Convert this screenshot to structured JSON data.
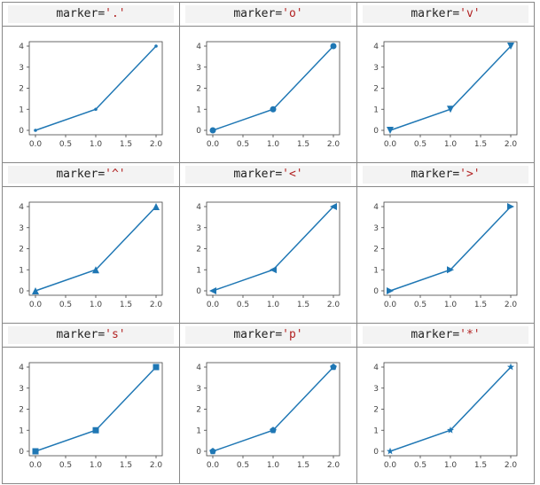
{
  "chart_data": [
    {
      "type": "line",
      "title_prefix": "marker=",
      "marker": "'.'",
      "x": [
        0,
        1,
        2
      ],
      "y": [
        0,
        1,
        4
      ],
      "xticks": [
        "0.0",
        "0.5",
        "1.0",
        "1.5",
        "2.0"
      ],
      "yticks": [
        "0",
        "1",
        "2",
        "3",
        "4"
      ],
      "xlim": [
        0,
        2
      ],
      "ylim": [
        0,
        4
      ],
      "color": "#1f77b4"
    },
    {
      "type": "line",
      "title_prefix": "marker=",
      "marker": "'o'",
      "x": [
        0,
        1,
        2
      ],
      "y": [
        0,
        1,
        4
      ],
      "xticks": [
        "0.0",
        "0.5",
        "1.0",
        "1.5",
        "2.0"
      ],
      "yticks": [
        "0",
        "1",
        "2",
        "3",
        "4"
      ],
      "xlim": [
        0,
        2
      ],
      "ylim": [
        0,
        4
      ],
      "color": "#1f77b4"
    },
    {
      "type": "line",
      "title_prefix": "marker=",
      "marker": "'v'",
      "x": [
        0,
        1,
        2
      ],
      "y": [
        0,
        1,
        4
      ],
      "xticks": [
        "0.0",
        "0.5",
        "1.0",
        "1.5",
        "2.0"
      ],
      "yticks": [
        "0",
        "1",
        "2",
        "3",
        "4"
      ],
      "xlim": [
        0,
        2
      ],
      "ylim": [
        0,
        4
      ],
      "color": "#1f77b4"
    },
    {
      "type": "line",
      "title_prefix": "marker=",
      "marker": "'^'",
      "x": [
        0,
        1,
        2
      ],
      "y": [
        0,
        1,
        4
      ],
      "xticks": [
        "0.0",
        "0.5",
        "1.0",
        "1.5",
        "2.0"
      ],
      "yticks": [
        "0",
        "1",
        "2",
        "3",
        "4"
      ],
      "xlim": [
        0,
        2
      ],
      "ylim": [
        0,
        4
      ],
      "color": "#1f77b4"
    },
    {
      "type": "line",
      "title_prefix": "marker=",
      "marker": "'<'",
      "x": [
        0,
        1,
        2
      ],
      "y": [
        0,
        1,
        4
      ],
      "xticks": [
        "0.0",
        "0.5",
        "1.0",
        "1.5",
        "2.0"
      ],
      "yticks": [
        "0",
        "1",
        "2",
        "3",
        "4"
      ],
      "xlim": [
        0,
        2
      ],
      "ylim": [
        0,
        4
      ],
      "color": "#1f77b4"
    },
    {
      "type": "line",
      "title_prefix": "marker=",
      "marker": "'>'",
      "x": [
        0,
        1,
        2
      ],
      "y": [
        0,
        1,
        4
      ],
      "xticks": [
        "0.0",
        "0.5",
        "1.0",
        "1.5",
        "2.0"
      ],
      "yticks": [
        "0",
        "1",
        "2",
        "3",
        "4"
      ],
      "xlim": [
        0,
        2
      ],
      "ylim": [
        0,
        4
      ],
      "color": "#1f77b4"
    },
    {
      "type": "line",
      "title_prefix": "marker=",
      "marker": "'s'",
      "x": [
        0,
        1,
        2
      ],
      "y": [
        0,
        1,
        4
      ],
      "xticks": [
        "0.0",
        "0.5",
        "1.0",
        "1.5",
        "2.0"
      ],
      "yticks": [
        "0",
        "1",
        "2",
        "3",
        "4"
      ],
      "xlim": [
        0,
        2
      ],
      "ylim": [
        0,
        4
      ],
      "color": "#1f77b4"
    },
    {
      "type": "line",
      "title_prefix": "marker=",
      "marker": "'p'",
      "x": [
        0,
        1,
        2
      ],
      "y": [
        0,
        1,
        4
      ],
      "xticks": [
        "0.0",
        "0.5",
        "1.0",
        "1.5",
        "2.0"
      ],
      "yticks": [
        "0",
        "1",
        "2",
        "3",
        "4"
      ],
      "xlim": [
        0,
        2
      ],
      "ylim": [
        0,
        4
      ],
      "color": "#1f77b4"
    },
    {
      "type": "line",
      "title_prefix": "marker=",
      "marker": "'*'",
      "x": [
        0,
        1,
        2
      ],
      "y": [
        0,
        1,
        4
      ],
      "xticks": [
        "0.0",
        "0.5",
        "1.0",
        "1.5",
        "2.0"
      ],
      "yticks": [
        "0",
        "1",
        "2",
        "3",
        "4"
      ],
      "xlim": [
        0,
        2
      ],
      "ylim": [
        0,
        4
      ],
      "color": "#1f77b4"
    }
  ]
}
